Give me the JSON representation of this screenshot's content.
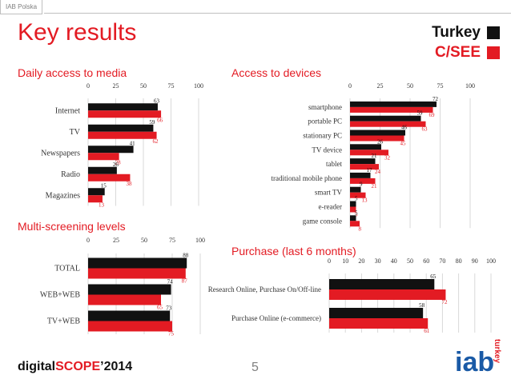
{
  "header": {
    "tag": "IAB Polska",
    "title": "Key results"
  },
  "legend": [
    {
      "label": "Turkey",
      "color": "#111111"
    },
    {
      "label": "C/SEE",
      "color": "#e31b23"
    }
  ],
  "colors": {
    "turkey": "#111111",
    "csee": "#e31b23",
    "accent": "#e31b23"
  },
  "chart_data": [
    {
      "id": "daily",
      "title": "Daily access to media",
      "type": "bar",
      "orientation": "horizontal",
      "xlim": [
        0,
        100
      ],
      "ticks": [
        0,
        25,
        50,
        75,
        100
      ],
      "categories": [
        "Internet",
        "TV",
        "Newspapers",
        "Radio",
        "Magazines"
      ],
      "series": [
        {
          "name": "Turkey",
          "values": [
            63,
            59,
            41,
            26,
            15
          ]
        },
        {
          "name": "C/SEE",
          "values": [
            66,
            62,
            28,
            38,
            13
          ]
        }
      ]
    },
    {
      "id": "devices",
      "title": "Access to devices",
      "type": "bar",
      "orientation": "horizontal",
      "xlim": [
        0,
        100
      ],
      "ticks": [
        0,
        25,
        50,
        75,
        100
      ],
      "categories": [
        "smartphone",
        "portable PC",
        "stationary PC",
        "TV device",
        "tablet",
        "traditional mobile phone",
        "smart TV",
        "e-reader",
        "game console"
      ],
      "series": [
        {
          "name": "Turkey",
          "values": [
            72,
            59,
            46,
            26,
            21,
            17,
            9,
            5,
            5
          ]
        },
        {
          "name": "C/SEE",
          "values": [
            69,
            63,
            45,
            32,
            24,
            21,
            13,
            5,
            8
          ]
        }
      ]
    },
    {
      "id": "multi",
      "title": "Multi-screening levels",
      "type": "bar",
      "orientation": "horizontal",
      "xlim": [
        0,
        100
      ],
      "ticks": [
        0,
        25,
        50,
        75,
        100
      ],
      "categories": [
        "TOTAL",
        "WEB+WEB",
        "TV+WEB"
      ],
      "series": [
        {
          "name": "Turkey",
          "values": [
            88,
            74,
            73
          ]
        },
        {
          "name": "C/SEE",
          "values": [
            87,
            65,
            75
          ]
        }
      ]
    },
    {
      "id": "purchase",
      "title": "Purchase (last 6 months)",
      "type": "bar",
      "orientation": "horizontal",
      "xlim": [
        0,
        100
      ],
      "ticks": [
        0,
        10,
        20,
        30,
        40,
        50,
        60,
        70,
        80,
        90,
        100
      ],
      "categories": [
        "Research Online, Purchase On/Off-line",
        "Purchase Online (e-commerce)"
      ],
      "series": [
        {
          "name": "Turkey",
          "values": [
            65,
            58
          ]
        },
        {
          "name": "C/SEE",
          "values": [
            72,
            61
          ]
        }
      ]
    }
  ],
  "footer": {
    "brand_prefix": "digital",
    "brand_scope": "SCOPE",
    "brand_year": "’2014",
    "page_number": "5",
    "logo_text": "iab",
    "logo_sub": "turkey"
  }
}
